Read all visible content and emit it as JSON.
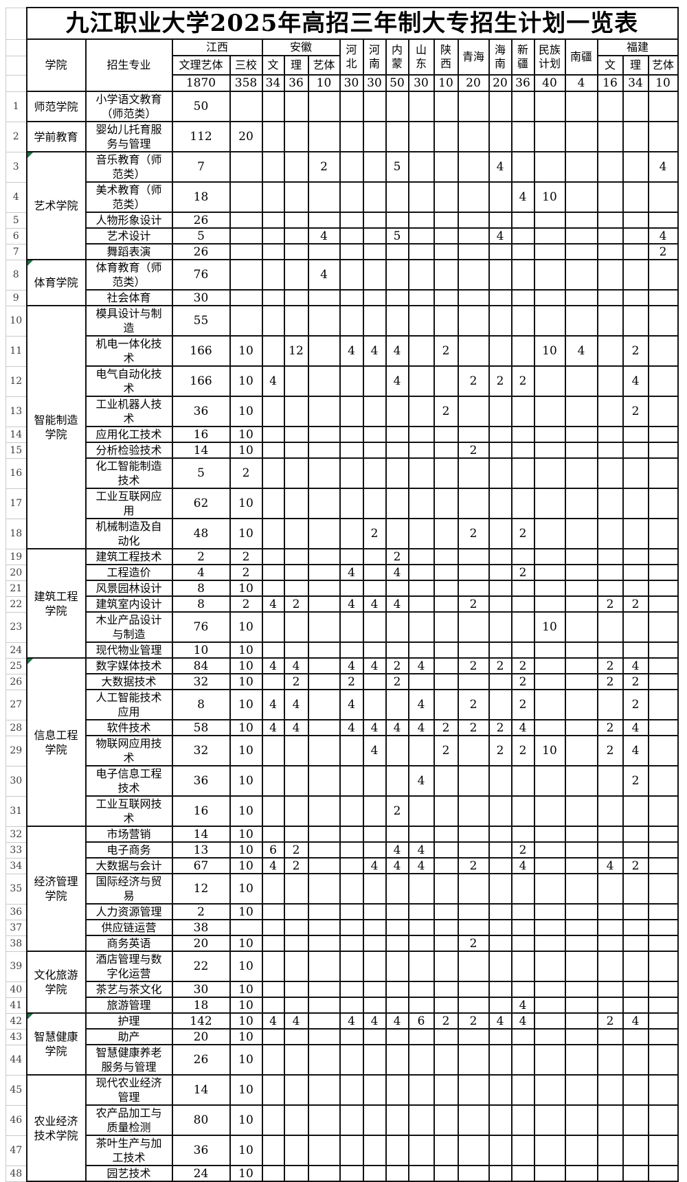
{
  "title": "九江职业大学2025年高招三年制大专招生计划一览表",
  "header": {
    "college_label": "学院",
    "major_label": "招生专业",
    "provinces": [
      {
        "name": "江西",
        "subs": [
          "文理艺体",
          "三校"
        ]
      },
      {
        "name": "安徽",
        "subs": [
          "文",
          "理",
          "艺体"
        ]
      },
      {
        "name": "河北",
        "lines": [
          "河",
          "北"
        ]
      },
      {
        "name": "河南",
        "lines": [
          "河",
          "南"
        ]
      },
      {
        "name": "内蒙",
        "lines": [
          "内",
          "蒙"
        ]
      },
      {
        "name": "山东",
        "lines": [
          "山",
          "东"
        ]
      },
      {
        "name": "陕西",
        "lines": [
          "陕",
          "西"
        ]
      },
      {
        "name": "青海",
        "lines": [
          "青海"
        ]
      },
      {
        "name": "海南",
        "lines": [
          "海",
          "南"
        ]
      },
      {
        "name": "新疆",
        "lines": [
          "新",
          "疆"
        ]
      },
      {
        "name": "民族计划",
        "lines": [
          "民族",
          "计划"
        ]
      },
      {
        "name": "南疆",
        "lines": [
          "南疆"
        ]
      },
      {
        "name": "福建",
        "subs": [
          "文",
          "理",
          "艺体"
        ]
      }
    ],
    "column_keys": [
      "江西-文理艺体",
      "江西-三校",
      "安徽-文",
      "安徽-理",
      "安徽-艺体",
      "河北",
      "河南",
      "内蒙",
      "山东",
      "陕西",
      "青海",
      "海南",
      "新疆",
      "民族计划",
      "南疆",
      "福建-文",
      "福建-理",
      "福建-艺体"
    ],
    "totals": [
      "1870",
      "358",
      "34",
      "36",
      "10",
      "30",
      "30",
      "50",
      "30",
      "10",
      "20",
      "20",
      "36",
      "40",
      "4",
      "16",
      "34",
      "10"
    ]
  },
  "rows": [
    {
      "no": "1",
      "college": "师范学院",
      "span": 1,
      "major": "小学语文教育（师范类）",
      "tall": true,
      "values": [
        "50",
        "",
        "",
        "",
        "",
        "",
        "",
        "",
        "",
        "",
        "",
        "",
        "",
        "",
        "",
        "",
        "",
        ""
      ]
    },
    {
      "no": "2",
      "college": "学前教育",
      "span": 1,
      "major": "婴幼儿托育服务与管理",
      "tall": true,
      "values": [
        "112",
        "20",
        "",
        "",
        "",
        "",
        "",
        "",
        "",
        "",
        "",
        "",
        "",
        "",
        "",
        "",
        "",
        ""
      ]
    },
    {
      "no": "3",
      "college": "艺术学院",
      "span": 5,
      "marker": true,
      "major": "音乐教育（师范类）",
      "tall": true,
      "values": [
        "7",
        "",
        "",
        "",
        "2",
        "",
        "",
        "5",
        "",
        "",
        "",
        "4",
        "",
        "",
        "",
        "",
        "",
        "4"
      ]
    },
    {
      "no": "4",
      "major": "美术教育（师范类）",
      "tall": true,
      "values": [
        "18",
        "",
        "",
        "",
        "",
        "",
        "",
        "",
        "",
        "",
        "",
        "",
        "4",
        "10",
        "",
        "",
        "",
        ""
      ]
    },
    {
      "no": "5",
      "major": "人物形象设计",
      "values": [
        "26",
        "",
        "",
        "",
        "",
        "",
        "",
        "",
        "",
        "",
        "",
        "",
        "",
        "",
        "",
        "",
        "",
        ""
      ]
    },
    {
      "no": "6",
      "major": "艺术设计",
      "values": [
        "5",
        "",
        "",
        "",
        "4",
        "",
        "",
        "5",
        "",
        "",
        "",
        "4",
        "",
        "",
        "",
        "",
        "",
        "4"
      ]
    },
    {
      "no": "7",
      "major": "舞蹈表演",
      "values": [
        "26",
        "",
        "",
        "",
        "",
        "",
        "",
        "",
        "",
        "",
        "",
        "",
        "",
        "",
        "",
        "",
        "",
        "2"
      ]
    },
    {
      "no": "8",
      "college": "体育学院",
      "span": 2,
      "marker": true,
      "major": "体育教育（师范类）",
      "tall": true,
      "values": [
        "76",
        "",
        "",
        "",
        "4",
        "",
        "",
        "",
        "",
        "",
        "",
        "",
        "",
        "",
        "",
        "",
        "",
        ""
      ]
    },
    {
      "no": "9",
      "major": "社会体育",
      "values": [
        "30",
        "",
        "",
        "",
        "",
        "",
        "",
        "",
        "",
        "",
        "",
        "",
        "",
        "",
        "",
        "",
        "",
        ""
      ]
    },
    {
      "no": "10",
      "college": "智能制造学院",
      "span": 9,
      "major": "模具设计与制造",
      "tall": true,
      "values": [
        "55",
        "",
        "",
        "",
        "",
        "",
        "",
        "",
        "",
        "",
        "",
        "",
        "",
        "",
        "",
        "",
        "",
        ""
      ]
    },
    {
      "no": "11",
      "major": "机电一体化技术",
      "tall": true,
      "values": [
        "166",
        "10",
        "",
        "12",
        "",
        "4",
        "4",
        "4",
        "",
        "2",
        "",
        "",
        "",
        "10",
        "4",
        "",
        "2",
        ""
      ]
    },
    {
      "no": "12",
      "major": "电气自动化技术",
      "tall": true,
      "values": [
        "166",
        "10",
        "4",
        "",
        "",
        "",
        "",
        "4",
        "",
        "",
        "2",
        "2",
        "2",
        "",
        "",
        "",
        "4",
        ""
      ]
    },
    {
      "no": "13",
      "major": "工业机器人技术",
      "tall": true,
      "values": [
        "36",
        "10",
        "",
        "",
        "",
        "",
        "",
        "",
        "",
        "2",
        "",
        "",
        "",
        "",
        "",
        "",
        "2",
        ""
      ]
    },
    {
      "no": "14",
      "major": "应用化工技术",
      "values": [
        "16",
        "10",
        "",
        "",
        "",
        "",
        "",
        "",
        "",
        "",
        "",
        "",
        "",
        "",
        "",
        "",
        "",
        ""
      ]
    },
    {
      "no": "15",
      "major": "分析检验技术",
      "values": [
        "14",
        "10",
        "",
        "",
        "",
        "",
        "",
        "",
        "",
        "",
        "2",
        "",
        "",
        "",
        "",
        "",
        "",
        ""
      ]
    },
    {
      "no": "16",
      "major": "化工智能制造技术",
      "tall": true,
      "values": [
        "5",
        "2",
        "",
        "",
        "",
        "",
        "",
        "",
        "",
        "",
        "",
        "",
        "",
        "",
        "",
        "",
        "",
        ""
      ]
    },
    {
      "no": "17",
      "major": "工业互联网应用",
      "tall": true,
      "values": [
        "62",
        "10",
        "",
        "",
        "",
        "",
        "",
        "",
        "",
        "",
        "",
        "",
        "",
        "",
        "",
        "",
        "",
        ""
      ]
    },
    {
      "no": "18",
      "major": "机械制造及自动化",
      "tall": true,
      "values": [
        "48",
        "10",
        "",
        "",
        "",
        "",
        "2",
        "",
        "",
        "",
        "2",
        "",
        "2",
        "",
        "",
        "",
        "",
        ""
      ]
    },
    {
      "no": "19",
      "college": "建筑工程学院",
      "span": 6,
      "major": "建筑工程技术",
      "values": [
        "2",
        "2",
        "",
        "",
        "",
        "",
        "",
        "2",
        "",
        "",
        "",
        "",
        "",
        "",
        "",
        "",
        "",
        ""
      ]
    },
    {
      "no": "20",
      "major": "工程造价",
      "values": [
        "4",
        "2",
        "",
        "",
        "",
        "4",
        "",
        "4",
        "",
        "",
        "",
        "",
        "2",
        "",
        "",
        "",
        "",
        ""
      ]
    },
    {
      "no": "21",
      "major": "风景园林设计",
      "values": [
        "8",
        "10",
        "",
        "",
        "",
        "",
        "",
        "",
        "",
        "",
        "",
        "",
        "",
        "",
        "",
        "",
        "",
        ""
      ]
    },
    {
      "no": "22",
      "major": "建筑室内设计",
      "values": [
        "8",
        "2",
        "4",
        "2",
        "",
        "4",
        "4",
        "4",
        "",
        "",
        "2",
        "",
        "",
        "",
        "",
        "2",
        "2",
        ""
      ]
    },
    {
      "no": "23",
      "major": "木业产品设计与制造",
      "tall": true,
      "values": [
        "76",
        "10",
        "",
        "",
        "",
        "",
        "",
        "",
        "",
        "",
        "",
        "",
        "",
        "10",
        "",
        "",
        "",
        ""
      ]
    },
    {
      "no": "24",
      "major": "现代物业管理",
      "values": [
        "10",
        "10",
        "",
        "",
        "",
        "",
        "",
        "",
        "",
        "",
        "",
        "",
        "",
        "",
        "",
        "",
        "",
        ""
      ]
    },
    {
      "no": "25",
      "college": "信息工程学院",
      "span": 7,
      "marker": true,
      "major": "数字媒体技术",
      "values": [
        "84",
        "10",
        "4",
        "4",
        "",
        "4",
        "4",
        "2",
        "4",
        "",
        "2",
        "2",
        "2",
        "",
        "",
        "2",
        "4",
        ""
      ]
    },
    {
      "no": "26",
      "major": "大数据技术",
      "values": [
        "32",
        "10",
        "",
        "2",
        "",
        "2",
        "",
        "2",
        "",
        "",
        "",
        "",
        "2",
        "",
        "",
        "2",
        "2",
        ""
      ]
    },
    {
      "no": "27",
      "major": "人工智能技术应用",
      "tall": true,
      "values": [
        "8",
        "10",
        "4",
        "4",
        "",
        "4",
        "",
        "",
        "4",
        "",
        "2",
        "",
        "2",
        "",
        "",
        "",
        "2",
        ""
      ]
    },
    {
      "no": "28",
      "major": "软件技术",
      "values": [
        "58",
        "10",
        "4",
        "4",
        "",
        "4",
        "4",
        "4",
        "4",
        "2",
        "2",
        "2",
        "4",
        "",
        "",
        "2",
        "4",
        ""
      ]
    },
    {
      "no": "29",
      "major": "物联网应用技术",
      "tall": true,
      "values": [
        "32",
        "10",
        "",
        "",
        "",
        "",
        "4",
        "",
        "",
        "2",
        "",
        "2",
        "2",
        "10",
        "",
        "2",
        "4",
        ""
      ]
    },
    {
      "no": "30",
      "major": "电子信息工程技术",
      "tall": true,
      "values": [
        "36",
        "10",
        "",
        "",
        "",
        "",
        "",
        "",
        "4",
        "",
        "",
        "",
        "",
        "",
        "",
        "",
        "2",
        ""
      ]
    },
    {
      "no": "31",
      "major": "工业互联网技术",
      "tall": true,
      "values": [
        "16",
        "10",
        "",
        "",
        "",
        "",
        "",
        "2",
        "",
        "",
        "",
        "",
        "",
        "",
        "",
        "",
        "",
        ""
      ]
    },
    {
      "no": "32",
      "college": "经济管理学院",
      "span": 7,
      "major": "市场营销",
      "values": [
        "14",
        "10",
        "",
        "",
        "",
        "",
        "",
        "",
        "",
        "",
        "",
        "",
        "",
        "",
        "",
        "",
        "",
        ""
      ]
    },
    {
      "no": "33",
      "major": "电子商务",
      "values": [
        "13",
        "10",
        "6",
        "2",
        "",
        "",
        "",
        "4",
        "4",
        "",
        "",
        "",
        "2",
        "",
        "",
        "",
        "",
        ""
      ]
    },
    {
      "no": "34",
      "major": "大数据与会计",
      "values": [
        "67",
        "10",
        "4",
        "2",
        "",
        "",
        "4",
        "4",
        "4",
        "",
        "2",
        "",
        "4",
        "",
        "",
        "4",
        "2",
        ""
      ]
    },
    {
      "no": "35",
      "major": "国际经济与贸易",
      "tall": true,
      "values": [
        "12",
        "10",
        "",
        "",
        "",
        "",
        "",
        "",
        "",
        "",
        "",
        "",
        "",
        "",
        "",
        "",
        "",
        ""
      ]
    },
    {
      "no": "36",
      "major": "人力资源管理",
      "values": [
        "2",
        "10",
        "",
        "",
        "",
        "",
        "",
        "",
        "",
        "",
        "",
        "",
        "",
        "",
        "",
        "",
        "",
        ""
      ]
    },
    {
      "no": "37",
      "major": "供应链运营",
      "values": [
        "38",
        "",
        "",
        "",
        "",
        "",
        "",
        "",
        "",
        "",
        "",
        "",
        "",
        "",
        "",
        "",
        "",
        ""
      ]
    },
    {
      "no": "38",
      "major": "商务英语",
      "values": [
        "20",
        "10",
        "",
        "",
        "",
        "",
        "",
        "",
        "",
        "",
        "2",
        "",
        "",
        "",
        "",
        "",
        "",
        ""
      ]
    },
    {
      "no": "39",
      "college": "文化旅游学院",
      "span": 3,
      "major": "酒店管理与数字化运营",
      "tall": true,
      "values": [
        "22",
        "10",
        "",
        "",
        "",
        "",
        "",
        "",
        "",
        "",
        "",
        "",
        "",
        "",
        "",
        "",
        "",
        ""
      ]
    },
    {
      "no": "40",
      "major": "茶艺与茶文化",
      "values": [
        "30",
        "10",
        "",
        "",
        "",
        "",
        "",
        "",
        "",
        "",
        "",
        "",
        "",
        "",
        "",
        "",
        "",
        ""
      ]
    },
    {
      "no": "41",
      "major": "旅游管理",
      "values": [
        "18",
        "10",
        "",
        "",
        "",
        "",
        "",
        "",
        "",
        "",
        "",
        "",
        "4",
        "",
        "",
        "",
        "",
        ""
      ]
    },
    {
      "no": "42",
      "college": "智慧健康学院",
      "span": 3,
      "marker": true,
      "major": "护理",
      "values": [
        "142",
        "10",
        "4",
        "4",
        "",
        "4",
        "4",
        "4",
        "6",
        "2",
        "2",
        "4",
        "4",
        "",
        "",
        "2",
        "4",
        ""
      ]
    },
    {
      "no": "43",
      "major": "助产",
      "values": [
        "20",
        "10",
        "",
        "",
        "",
        "",
        "",
        "",
        "",
        "",
        "",
        "",
        "",
        "",
        "",
        "",
        "",
        ""
      ]
    },
    {
      "no": "44",
      "major": "智慧健康养老服务与管理",
      "tall": true,
      "values": [
        "26",
        "10",
        "",
        "",
        "",
        "",
        "",
        "",
        "",
        "",
        "",
        "",
        "",
        "",
        "",
        "",
        "",
        ""
      ]
    },
    {
      "no": "45",
      "college": "农业经济技术学院",
      "span": 4,
      "major": "现代农业经济管理",
      "tall": true,
      "values": [
        "14",
        "10",
        "",
        "",
        "",
        "",
        "",
        "",
        "",
        "",
        "",
        "",
        "",
        "",
        "",
        "",
        "",
        ""
      ]
    },
    {
      "no": "46",
      "major": "农产品加工与质量检测",
      "tall": true,
      "values": [
        "80",
        "10",
        "",
        "",
        "",
        "",
        "",
        "",
        "",
        "",
        "",
        "",
        "",
        "",
        "",
        "",
        "",
        ""
      ]
    },
    {
      "no": "47",
      "major": "茶叶生产与加工技术",
      "tall": true,
      "values": [
        "36",
        "10",
        "",
        "",
        "",
        "",
        "",
        "",
        "",
        "",
        "",
        "",
        "",
        "",
        "",
        "",
        "",
        ""
      ]
    },
    {
      "no": "48",
      "major": "园艺技术",
      "values": [
        "24",
        "10",
        "",
        "",
        "",
        "",
        "",
        "",
        "",
        "",
        "",
        "",
        "",
        "",
        "",
        "",
        "",
        ""
      ]
    }
  ]
}
